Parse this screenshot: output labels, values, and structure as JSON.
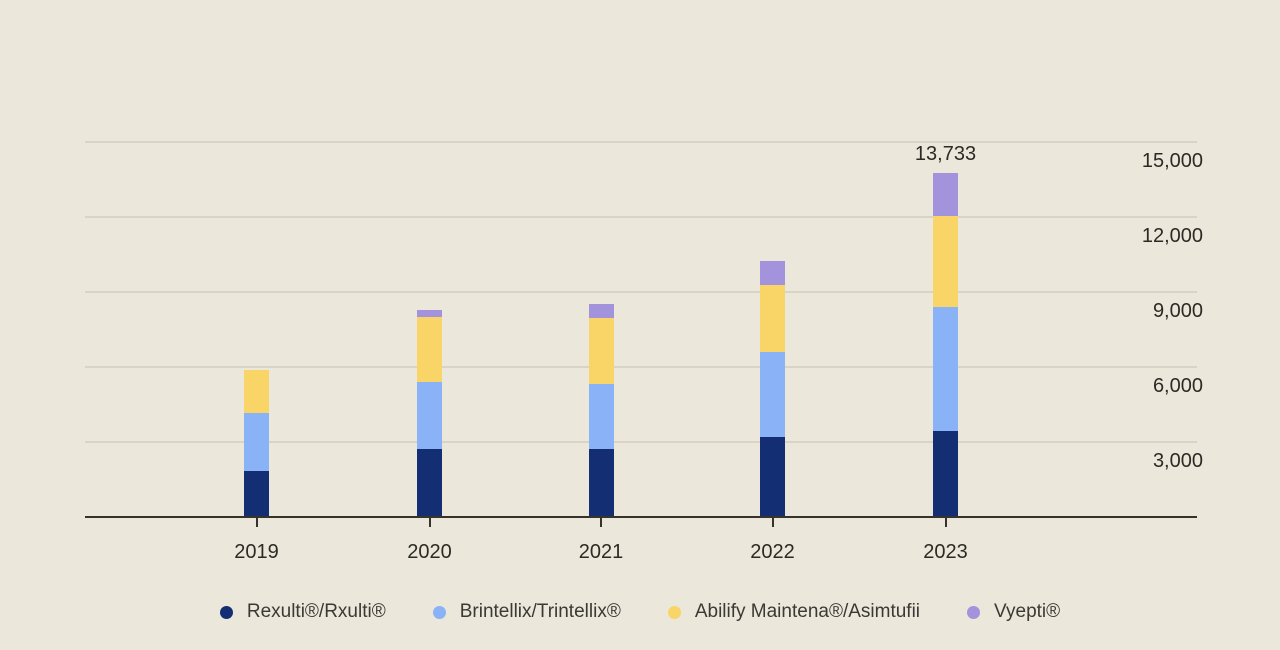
{
  "chart_data": {
    "type": "bar",
    "stacked": true,
    "title": "",
    "xlabel": "",
    "ylabel": "",
    "categories": [
      "2019",
      "2020",
      "2021",
      "2022",
      "2023"
    ],
    "series": [
      {
        "name": "Rexulti®/Rxulti®",
        "color": "#132e72",
        "values": [
          1790,
          2670,
          2670,
          3150,
          3404
        ]
      },
      {
        "name": "Brintellix/Trintellix®",
        "color": "#8ab2f7",
        "values": [
          2350,
          2710,
          2630,
          3430,
          4944
        ]
      },
      {
        "name": "Abilify Maintena®/Asimtufii",
        "color": "#f8d566",
        "values": [
          1715,
          2590,
          2630,
          2670,
          3667
        ]
      },
      {
        "name": "Vyepti®",
        "color": "#a392dc",
        "values": [
          0,
          280,
          560,
          960,
          1718
        ]
      }
    ],
    "totals": [
      5855,
      8250,
      8490,
      10210,
      13733
    ],
    "annotations": [
      {
        "category": "2023",
        "label": "13,733"
      }
    ],
    "y_ticks": [
      "3,000",
      "6,000",
      "9,000",
      "12,000",
      "15,000"
    ],
    "y_tick_values": [
      3000,
      6000,
      9000,
      12000,
      15000
    ],
    "ylim": [
      0,
      15500
    ],
    "grid": "horizontal",
    "axis_side": "right",
    "legend_position": "bottom"
  },
  "colors": {
    "background": "#ebe7db",
    "gridline": "#d9d4c6",
    "axis": "#35332c",
    "text": "#2b2a25"
  }
}
